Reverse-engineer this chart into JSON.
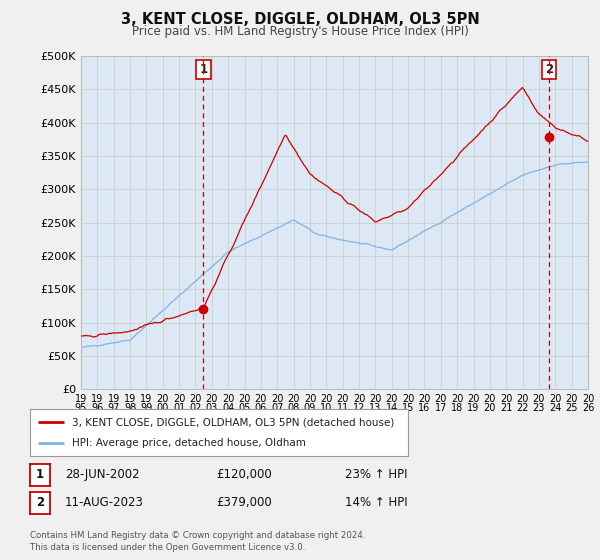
{
  "title": "3, KENT CLOSE, DIGGLE, OLDHAM, OL3 5PN",
  "subtitle": "Price paid vs. HM Land Registry's House Price Index (HPI)",
  "ylabel_ticks": [
    "£0",
    "£50K",
    "£100K",
    "£150K",
    "£200K",
    "£250K",
    "£300K",
    "£350K",
    "£400K",
    "£450K",
    "£500K"
  ],
  "ytick_vals": [
    0,
    50000,
    100000,
    150000,
    200000,
    250000,
    300000,
    350000,
    400000,
    450000,
    500000
  ],
  "ylim": [
    0,
    500000
  ],
  "xmin_year": 1995,
  "xmax_year": 2026,
  "sale1_date": 2002.49,
  "sale1_price": 120000,
  "sale1_label": "1",
  "sale2_date": 2023.61,
  "sale2_price": 379000,
  "sale2_label": "2",
  "hpi_color": "#7EB3E8",
  "price_color": "#CC0000",
  "vline_color": "#CC0000",
  "grid_color": "#C8C8C8",
  "plot_bg_color": "#DCE9F5",
  "background_color": "#F0F0F0",
  "legend_label_price": "3, KENT CLOSE, DIGGLE, OLDHAM, OL3 5PN (detached house)",
  "legend_label_hpi": "HPI: Average price, detached house, Oldham",
  "annotation1_date": "28-JUN-2002",
  "annotation1_price": "£120,000",
  "annotation1_hpi": "23% ↑ HPI",
  "annotation2_date": "11-AUG-2023",
  "annotation2_price": "£379,000",
  "annotation2_hpi": "14% ↑ HPI",
  "footer": "Contains HM Land Registry data © Crown copyright and database right 2024.\nThis data is licensed under the Open Government Licence v3.0.",
  "xtick_years": [
    1995,
    1996,
    1997,
    1998,
    1999,
    2000,
    2001,
    2002,
    2003,
    2004,
    2005,
    2006,
    2007,
    2008,
    2009,
    2010,
    2011,
    2012,
    2013,
    2014,
    2015,
    2016,
    2017,
    2018,
    2019,
    2020,
    2021,
    2022,
    2023,
    2024,
    2025,
    2026
  ]
}
